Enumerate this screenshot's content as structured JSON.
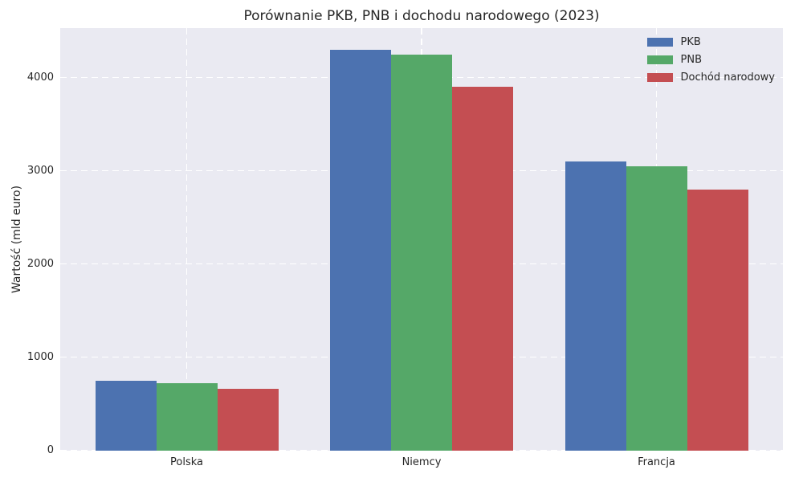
{
  "chart_data": {
    "type": "bar",
    "title": "Porównanie PKB, PNB i dochodu narodowego (2023)",
    "xlabel": "",
    "ylabel": "Wartość (mld euro)",
    "categories": [
      "Polska",
      "Niemcy",
      "Francja"
    ],
    "series": [
      {
        "name": "PKB",
        "color": "#4C72B0",
        "values": [
          750,
          4300,
          3100
        ]
      },
      {
        "name": "PNB",
        "color": "#55A868",
        "values": [
          720,
          4250,
          3050
        ]
      },
      {
        "name": "Dochód narodowy",
        "color": "#C44E52",
        "values": [
          660,
          3900,
          2800
        ]
      }
    ],
    "ylim": [
      0,
      4530
    ],
    "yticks": [
      0,
      1000,
      2000,
      3000,
      4000
    ],
    "grid": true,
    "grid_style": "dashed white",
    "legend_position": "upper right",
    "plot_background": "#EAEAF2",
    "figure_background": "#FFFFFF",
    "text_color": "#262626"
  }
}
